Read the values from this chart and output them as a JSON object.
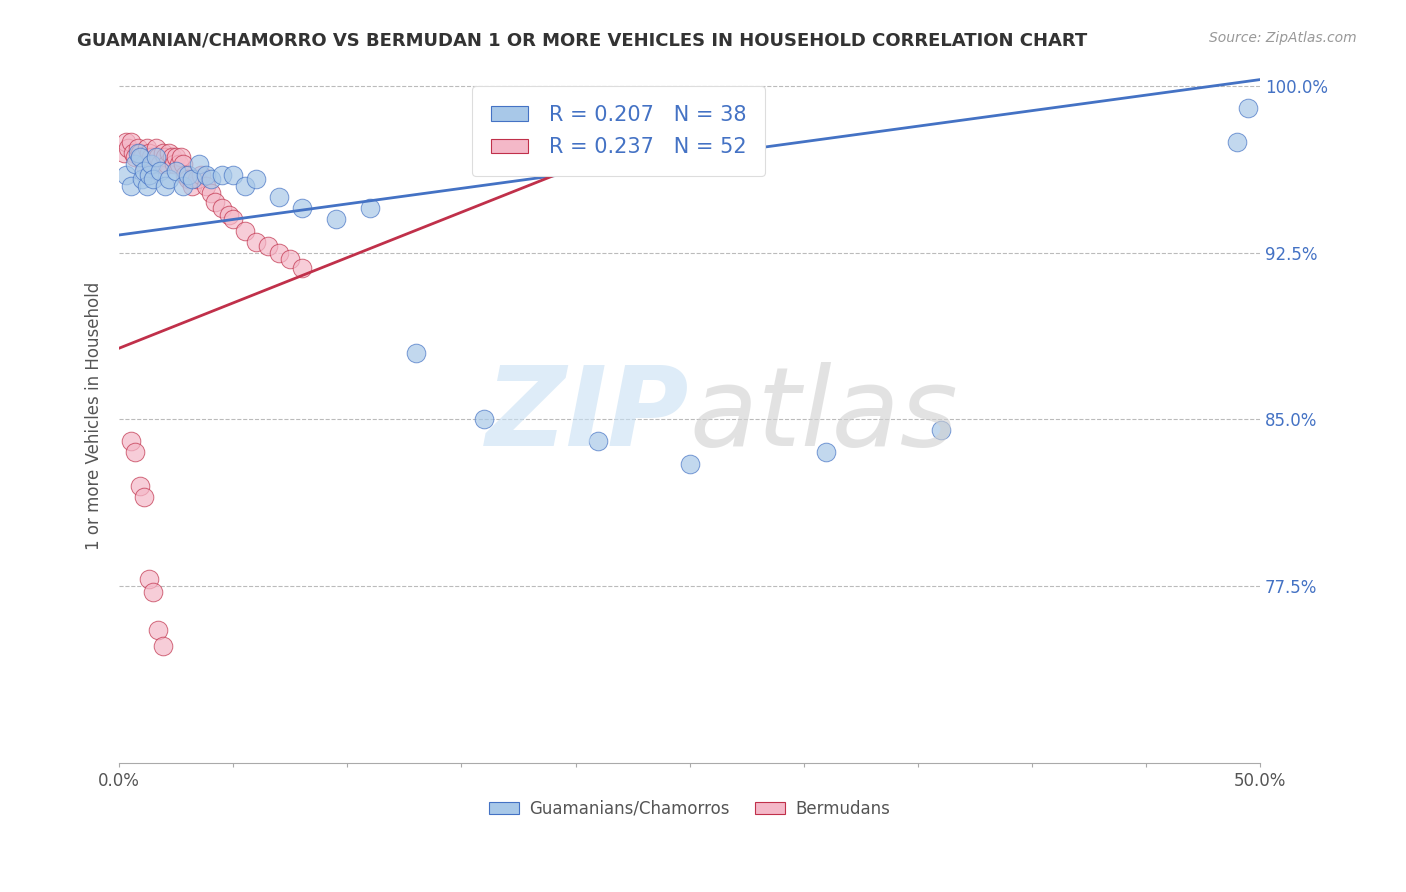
{
  "title": "GUAMANIAN/CHAMORRO VS BERMUDAN 1 OR MORE VEHICLES IN HOUSEHOLD CORRELATION CHART",
  "source": "Source: ZipAtlas.com",
  "ylabel": "1 or more Vehicles in Household",
  "xlim": [
    0.0,
    0.5
  ],
  "ylim": [
    0.695,
    1.008
  ],
  "r_blue": 0.207,
  "n_blue": 38,
  "r_pink": 0.237,
  "n_pink": 52,
  "blue_color": "#a8c8e8",
  "pink_color": "#f4b8c8",
  "trend_blue": "#4472c4",
  "trend_pink": "#c0304a",
  "ytick_vals": [
    0.775,
    0.85,
    0.925,
    1.0
  ],
  "ytick_labels": [
    "77.5%",
    "85.0%",
    "92.5%",
    "100.0%"
  ],
  "blue_scatter_x": [
    0.003,
    0.005,
    0.007,
    0.008,
    0.009,
    0.01,
    0.011,
    0.012,
    0.013,
    0.014,
    0.015,
    0.016,
    0.018,
    0.02,
    0.022,
    0.025,
    0.028,
    0.03,
    0.032,
    0.035,
    0.038,
    0.04,
    0.045,
    0.05,
    0.055,
    0.06,
    0.07,
    0.08,
    0.095,
    0.11,
    0.13,
    0.16,
    0.21,
    0.25,
    0.31,
    0.36,
    0.49,
    0.495
  ],
  "blue_scatter_y": [
    0.96,
    0.955,
    0.965,
    0.97,
    0.968,
    0.958,
    0.962,
    0.955,
    0.96,
    0.965,
    0.958,
    0.968,
    0.962,
    0.955,
    0.958,
    0.962,
    0.955,
    0.96,
    0.958,
    0.965,
    0.96,
    0.958,
    0.96,
    0.96,
    0.955,
    0.958,
    0.95,
    0.945,
    0.94,
    0.945,
    0.88,
    0.85,
    0.84,
    0.83,
    0.835,
    0.845,
    0.975,
    0.99
  ],
  "pink_scatter_x": [
    0.002,
    0.003,
    0.004,
    0.005,
    0.006,
    0.007,
    0.008,
    0.009,
    0.01,
    0.011,
    0.012,
    0.013,
    0.014,
    0.015,
    0.016,
    0.017,
    0.018,
    0.019,
    0.02,
    0.021,
    0.022,
    0.023,
    0.024,
    0.025,
    0.026,
    0.027,
    0.028,
    0.029,
    0.03,
    0.032,
    0.034,
    0.036,
    0.038,
    0.04,
    0.042,
    0.045,
    0.048,
    0.05,
    0.055,
    0.06,
    0.065,
    0.07,
    0.075,
    0.08,
    0.005,
    0.007,
    0.009,
    0.011,
    0.013,
    0.015,
    0.017,
    0.019
  ],
  "pink_scatter_y": [
    0.97,
    0.975,
    0.972,
    0.975,
    0.97,
    0.968,
    0.972,
    0.97,
    0.968,
    0.965,
    0.972,
    0.97,
    0.968,
    0.965,
    0.972,
    0.968,
    0.965,
    0.97,
    0.968,
    0.965,
    0.97,
    0.968,
    0.965,
    0.968,
    0.965,
    0.968,
    0.965,
    0.96,
    0.958,
    0.955,
    0.958,
    0.96,
    0.955,
    0.952,
    0.948,
    0.945,
    0.942,
    0.94,
    0.935,
    0.93,
    0.928,
    0.925,
    0.922,
    0.918,
    0.84,
    0.835,
    0.82,
    0.815,
    0.778,
    0.772,
    0.755,
    0.748
  ],
  "blue_trend_x0": 0.0,
  "blue_trend_y0": 0.933,
  "blue_trend_x1": 0.5,
  "blue_trend_y1": 1.003,
  "pink_trend_x0": 0.0,
  "pink_trend_y0": 0.882,
  "pink_trend_x1": 0.24,
  "pink_trend_y1": 0.98
}
